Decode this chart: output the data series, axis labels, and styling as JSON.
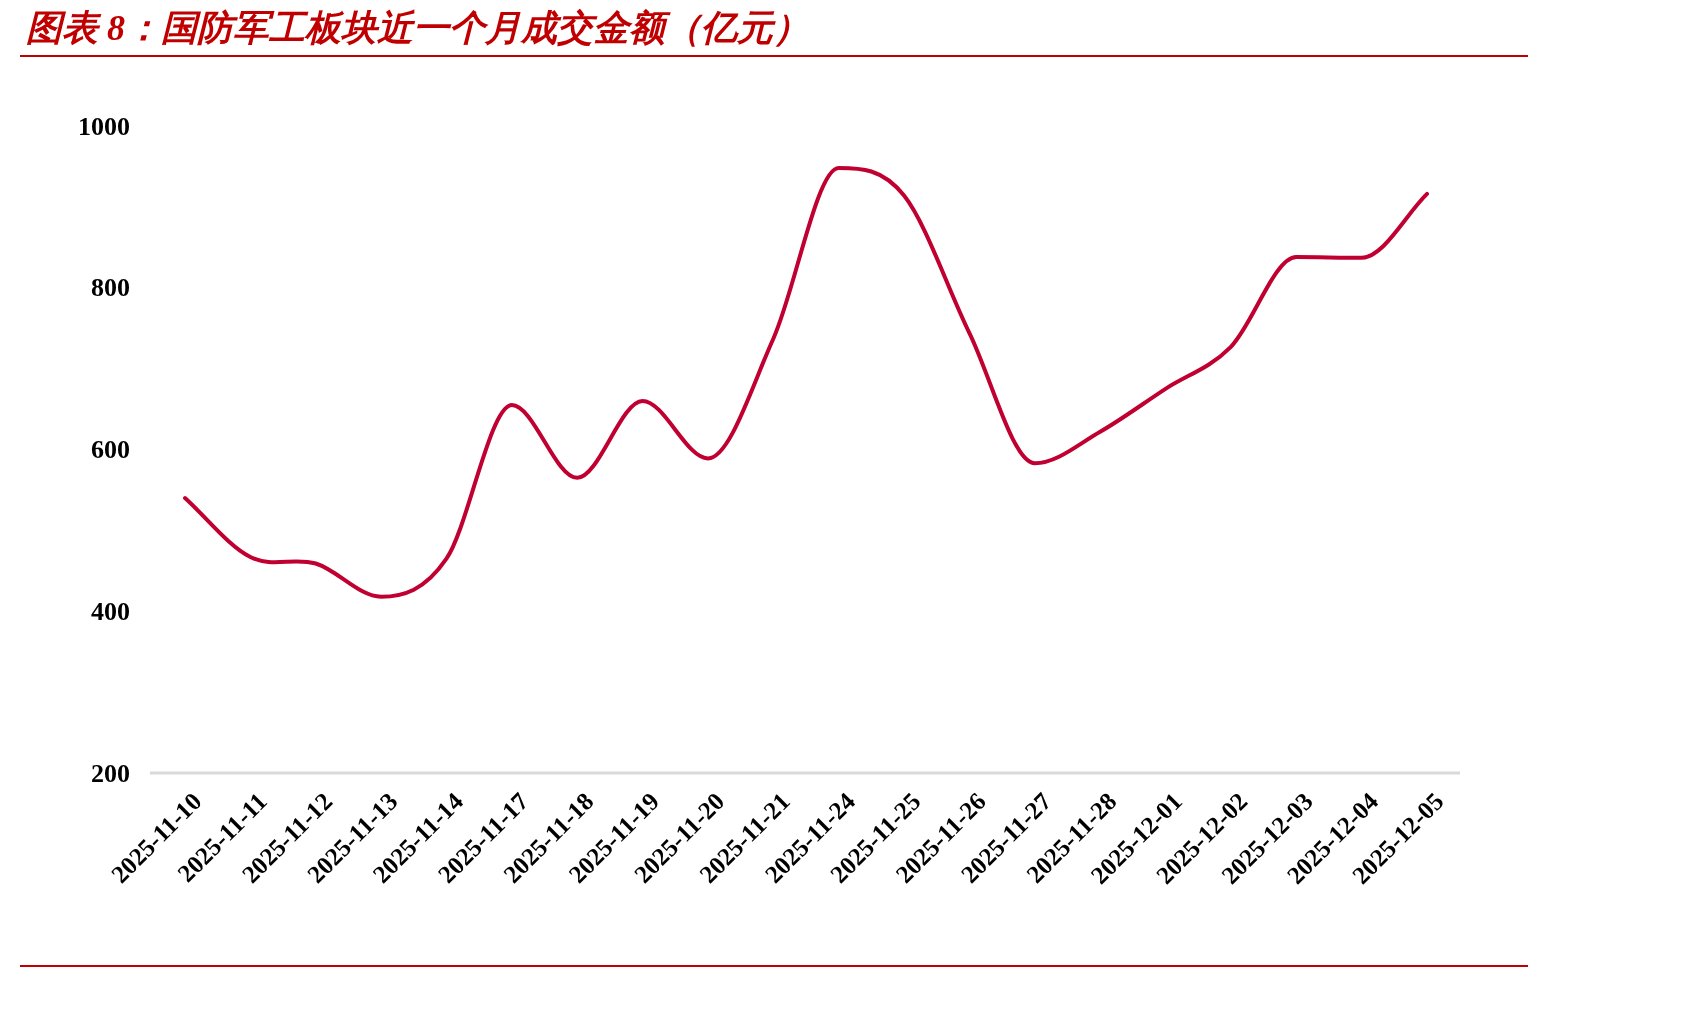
{
  "chart_data": {
    "type": "line",
    "title": "图表 8：国防军工板块近一个月成交金额（亿元）",
    "categories": [
      "2025-11-10",
      "2025-11-11",
      "2025-11-12",
      "2025-11-13",
      "2025-11-14",
      "2025-11-17",
      "2025-11-18",
      "2025-11-19",
      "2025-11-20",
      "2025-11-21",
      "2025-11-24",
      "2025-11-25",
      "2025-11-26",
      "2025-11-27",
      "2025-11-28",
      "2025-12-01",
      "2025-12-02",
      "2025-12-03",
      "2025-12-04",
      "2025-12-05"
    ],
    "series": [
      {
        "color": "#c00030",
        "values": [
          540,
          467,
          459,
          418,
          465,
          655,
          565,
          660,
          589,
          737,
          948,
          914,
          744,
          583,
          622,
          675,
          727,
          838,
          837,
          916
        ]
      }
    ],
    "ylim": [
      200,
      1000
    ],
    "yticks": [
      200,
      400,
      600,
      800,
      1000
    ],
    "grid": false
  }
}
